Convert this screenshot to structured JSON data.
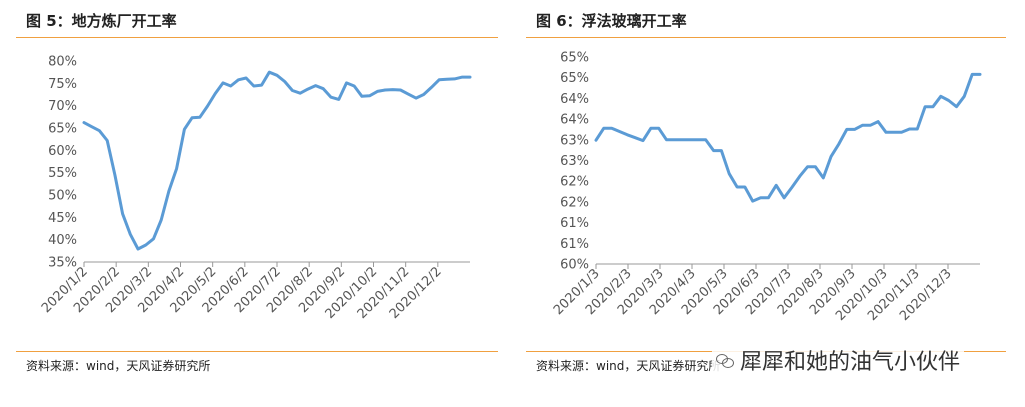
{
  "chart_data": [
    {
      "type": "line",
      "title": "图 5：地方炼厂开工率",
      "source": "资料来源：wind，天风证券研究所",
      "color": "#5B9BD5",
      "ylim": [
        35,
        80
      ],
      "ytick_labels": [
        "35%",
        "40%",
        "45%",
        "50%",
        "55%",
        "60%",
        "65%",
        "70%",
        "75%",
        "80%"
      ],
      "xtick_labels": [
        "2020/1/2",
        "2020/2/2",
        "2020/3/2",
        "2020/4/2",
        "2020/5/2",
        "2020/6/2",
        "2020/7/2",
        "2020/8/2",
        "2020/9/2",
        "2020/10/2",
        "2020/11/2",
        "2020/12/2"
      ],
      "series": [
        {
          "values": [
            66.2,
            65.3,
            64.4,
            62.2,
            54.5,
            45.8,
            41.2,
            37.9,
            38.8,
            40.2,
            44.4,
            50.9,
            55.9,
            64.7,
            67.3,
            67.4,
            69.9,
            72.7,
            75.1,
            74.4,
            75.8,
            76.2,
            74.4,
            74.6,
            77.5,
            76.8,
            75.4,
            73.4,
            72.8,
            73.7,
            74.5,
            73.8,
            71.9,
            71.4,
            75.1,
            74.4,
            72.1,
            72.2,
            73.2,
            73.5,
            73.6,
            73.5,
            72.6,
            71.7,
            72.5,
            74.1,
            75.8,
            75.9,
            76.0,
            76.4,
            76.4
          ]
        }
      ]
    },
    {
      "type": "line",
      "title": "图 6：浮法玻璃开工率",
      "source": "资料来源：wind，天风证券研究所",
      "color": "#5B9BD5",
      "ylim": [
        60,
        65
      ],
      "ytick_labels": [
        "60%",
        "61%",
        "61%",
        "62%",
        "62%",
        "63%",
        "63%",
        "64%",
        "64%",
        "65%",
        "65%"
      ],
      "xtick_labels": [
        "2020/1/3",
        "2020/2/3",
        "2020/3/3",
        "2020/4/3",
        "2020/5/3",
        "2020/6/3",
        "2020/7/3",
        "2020/8/3",
        "2020/9/3",
        "2020/10/3",
        "2020/11/3",
        "2020/12/3"
      ],
      "series": [
        {
          "values": [
            62.99,
            63.28,
            63.28,
            63.2,
            63.12,
            63.05,
            62.98,
            63.28,
            63.28,
            63.0,
            63.0,
            63.0,
            63.0,
            63.0,
            63.0,
            62.74,
            62.74,
            62.18,
            61.86,
            61.86,
            61.52,
            61.6,
            61.6,
            61.9,
            61.6,
            61.85,
            62.12,
            62.35,
            62.35,
            62.08,
            62.6,
            62.9,
            63.25,
            63.25,
            63.35,
            63.35,
            63.44,
            63.18,
            63.18,
            63.18,
            63.26,
            63.26,
            63.8,
            63.8,
            64.05,
            63.95,
            63.8,
            64.05,
            64.58,
            64.58
          ]
        }
      ]
    }
  ],
  "watermark": {
    "text": "犀犀和她的油气小伙伴",
    "icon": "wechat-icon"
  }
}
